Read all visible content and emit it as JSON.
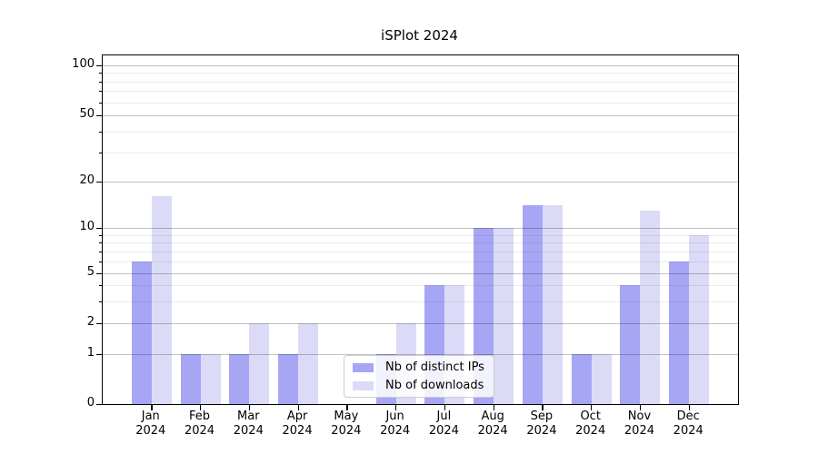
{
  "chart_data": {
    "type": "bar",
    "title": "iSPlot 2024",
    "categories": [
      "Jan 2024",
      "Feb 2024",
      "Mar 2024",
      "Apr 2024",
      "May 2024",
      "Jun 2024",
      "Jul 2024",
      "Aug 2024",
      "Sep 2024",
      "Oct 2024",
      "Nov 2024",
      "Dec 2024"
    ],
    "series": [
      {
        "name": "Nb of distinct IPs",
        "color": "#a6a6f4",
        "values": [
          6,
          1,
          1,
          1,
          0,
          1,
          4,
          10,
          14,
          1,
          4,
          6
        ]
      },
      {
        "name": "Nb of downloads",
        "color": "#dbdbf8",
        "values": [
          16,
          1,
          2,
          2,
          0,
          2,
          4,
          10,
          14,
          1,
          13,
          9
        ]
      }
    ],
    "y_axis": {
      "scale": "log-like",
      "major_ticks": [
        0,
        1,
        2,
        5,
        10,
        20,
        50,
        100
      ],
      "minor_ticks": [
        3,
        4,
        6,
        7,
        8,
        9,
        30,
        40,
        60,
        70,
        80,
        90
      ],
      "ylim": [
        0,
        115
      ]
    },
    "xlabel": "",
    "ylabel": "",
    "grid": true,
    "legend_position": "lower center"
  }
}
